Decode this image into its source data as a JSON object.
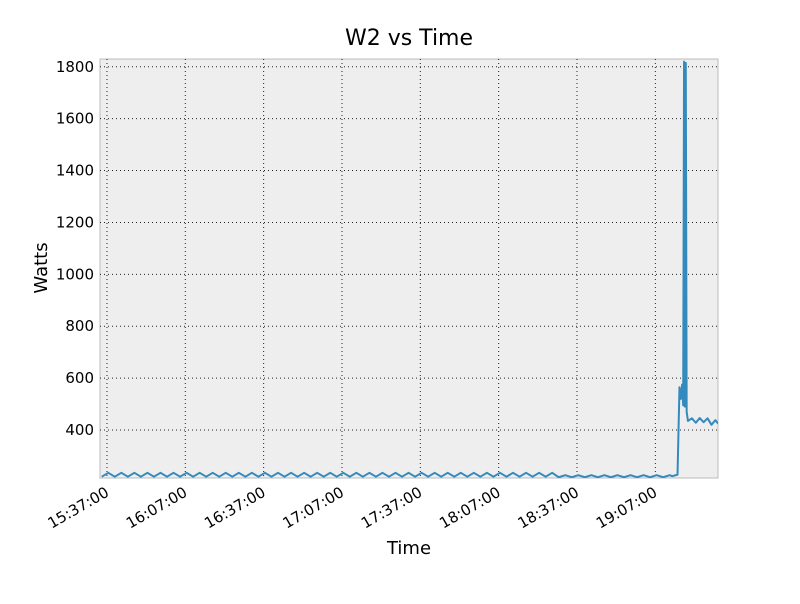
{
  "chart_data": {
    "type": "line",
    "title": "W2 vs Time",
    "x_label": "Time",
    "y_label": "Watts",
    "x": [
      "15:35:00",
      "15:37:30",
      "15:40:00",
      "15:42:30",
      "15:45:00",
      "15:47:30",
      "15:50:00",
      "15:52:30",
      "15:55:00",
      "15:57:30",
      "16:00:00",
      "16:02:30",
      "16:05:00",
      "16:07:30",
      "16:10:00",
      "16:12:30",
      "16:15:00",
      "16:17:30",
      "16:20:00",
      "16:22:30",
      "16:25:00",
      "16:27:30",
      "16:30:00",
      "16:32:30",
      "16:35:00",
      "16:37:30",
      "16:40:00",
      "16:42:30",
      "16:45:00",
      "16:47:30",
      "16:50:00",
      "16:52:30",
      "16:55:00",
      "16:57:30",
      "17:00:00",
      "17:02:30",
      "17:05:00",
      "17:07:30",
      "17:10:00",
      "17:12:30",
      "17:15:00",
      "17:17:30",
      "17:20:00",
      "17:22:30",
      "17:25:00",
      "17:27:30",
      "17:30:00",
      "17:32:30",
      "17:35:00",
      "17:37:30",
      "17:40:00",
      "17:42:30",
      "17:45:00",
      "17:47:30",
      "17:50:00",
      "17:52:30",
      "17:55:00",
      "17:57:30",
      "18:00:00",
      "18:02:30",
      "18:05:00",
      "18:07:30",
      "18:10:00",
      "18:12:30",
      "18:15:00",
      "18:17:30",
      "18:20:00",
      "18:22:30",
      "18:25:00",
      "18:27:30",
      "18:30:00",
      "18:32:30",
      "18:35:00",
      "18:37:30",
      "18:40:00",
      "18:42:30",
      "18:45:00",
      "18:47:30",
      "18:50:00",
      "18:52:30",
      "18:55:00",
      "18:57:30",
      "19:00:00",
      "19:02:30",
      "19:05:00",
      "19:07:30",
      "19:10:00",
      "19:12:30",
      "19:13:30",
      "19:15:30",
      "19:16:15",
      "19:16:45",
      "19:17:15",
      "19:17:40",
      "19:18:00",
      "19:18:20",
      "19:18:40",
      "19:19:00",
      "19:19:30",
      "19:21:00",
      "19:22:30",
      "19:24:00",
      "19:25:30",
      "19:27:00",
      "19:28:30",
      "19:30:00",
      "19:31:00"
    ],
    "series": [
      {
        "name": "W2",
        "color": "#348abd",
        "values": [
          220,
          235,
          220,
          235,
          220,
          235,
          220,
          235,
          220,
          235,
          220,
          235,
          220,
          235,
          220,
          235,
          220,
          235,
          220,
          235,
          220,
          235,
          220,
          235,
          220,
          235,
          220,
          235,
          220,
          235,
          220,
          235,
          220,
          235,
          220,
          235,
          220,
          235,
          220,
          235,
          220,
          235,
          220,
          235,
          220,
          235,
          220,
          235,
          220,
          235,
          220,
          235,
          220,
          235,
          220,
          235,
          220,
          235,
          220,
          235,
          220,
          235,
          220,
          235,
          220,
          235,
          220,
          235,
          220,
          235,
          218,
          226,
          218,
          226,
          218,
          226,
          218,
          226,
          218,
          226,
          218,
          226,
          218,
          226,
          218,
          226,
          218,
          226,
          222,
          228,
          565,
          520,
          575,
          495,
          1820,
          490,
          1815,
          470,
          435,
          445,
          428,
          446,
          430,
          445,
          420,
          438,
          425
        ]
      }
    ],
    "xlim": [
      "15:34:20",
      "19:31:00"
    ],
    "xticks": [
      "15:37:00",
      "16:07:00",
      "16:37:00",
      "17:07:00",
      "17:37:00",
      "18:07:00",
      "18:37:00",
      "19:07:00"
    ],
    "ylim": [
      215,
      1830
    ],
    "yticks": [
      400,
      600,
      800,
      1000,
      1200,
      1400,
      1600,
      1800
    ],
    "grid": true
  }
}
